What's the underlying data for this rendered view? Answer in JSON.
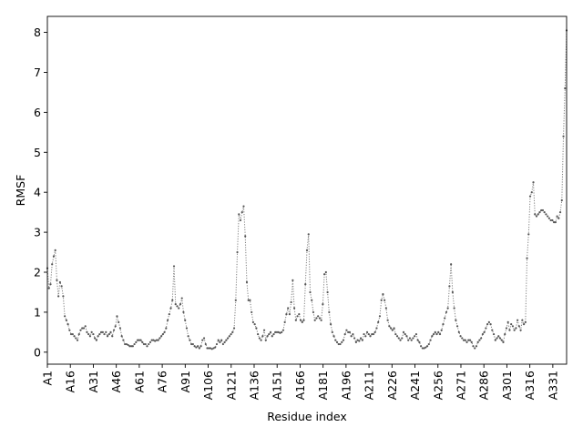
{
  "chart_data": {
    "type": "line",
    "xlabel": "Residue index",
    "ylabel": "RMSF",
    "ylim": [
      -0.3,
      8.4
    ],
    "yticks": [
      0,
      1,
      2,
      3,
      4,
      5,
      6,
      7,
      8
    ],
    "xticks": [
      "A1",
      "A16",
      "A31",
      "A46",
      "A61",
      "A76",
      "A91",
      "A106",
      "A121",
      "A136",
      "A151",
      "A166",
      "A181",
      "A196",
      "A211",
      "A226",
      "A241",
      "A256",
      "A271",
      "A286",
      "A301",
      "A316",
      "A331"
    ],
    "x_first": 1,
    "x_last": 340,
    "grid": false,
    "series": [
      {
        "color": "#808080",
        "line_style": "dotted",
        "marker": "point",
        "values": [
          2.1,
          1.6,
          1.7,
          2.2,
          2.4,
          2.55,
          1.8,
          1.4,
          1.75,
          1.65,
          1.4,
          0.9,
          0.8,
          0.7,
          0.55,
          0.45,
          0.45,
          0.4,
          0.35,
          0.3,
          0.45,
          0.55,
          0.6,
          0.6,
          0.65,
          0.5,
          0.45,
          0.4,
          0.5,
          0.45,
          0.35,
          0.3,
          0.4,
          0.45,
          0.5,
          0.5,
          0.45,
          0.5,
          0.4,
          0.45,
          0.5,
          0.4,
          0.55,
          0.65,
          0.9,
          0.75,
          0.6,
          0.4,
          0.3,
          0.2,
          0.2,
          0.18,
          0.15,
          0.15,
          0.15,
          0.2,
          0.25,
          0.3,
          0.3,
          0.3,
          0.25,
          0.2,
          0.2,
          0.15,
          0.2,
          0.25,
          0.3,
          0.3,
          0.28,
          0.3,
          0.3,
          0.35,
          0.4,
          0.45,
          0.5,
          0.6,
          0.8,
          0.95,
          1.1,
          1.3,
          2.15,
          1.2,
          1.15,
          1.1,
          1.2,
          1.35,
          1.0,
          0.8,
          0.6,
          0.4,
          0.3,
          0.2,
          0.2,
          0.15,
          0.12,
          0.15,
          0.1,
          0.15,
          0.3,
          0.35,
          0.2,
          0.1,
          0.1,
          0.1,
          0.08,
          0.1,
          0.12,
          0.2,
          0.3,
          0.25,
          0.3,
          0.2,
          0.25,
          0.3,
          0.35,
          0.4,
          0.45,
          0.5,
          0.6,
          1.3,
          2.5,
          3.45,
          3.3,
          3.5,
          3.65,
          2.9,
          1.75,
          1.3,
          1.3,
          1.0,
          0.75,
          0.7,
          0.6,
          0.45,
          0.35,
          0.3,
          0.4,
          0.55,
          0.3,
          0.4,
          0.45,
          0.5,
          0.4,
          0.45,
          0.5,
          0.5,
          0.5,
          0.48,
          0.5,
          0.55,
          0.75,
          0.95,
          1.1,
          0.95,
          1.25,
          1.8,
          1.1,
          0.8,
          0.9,
          0.95,
          0.8,
          0.75,
          0.8,
          1.7,
          2.55,
          2.95,
          1.5,
          1.3,
          1.0,
          0.8,
          0.85,
          0.9,
          0.85,
          0.8,
          1.2,
          1.95,
          2.0,
          1.5,
          1.0,
          0.7,
          0.5,
          0.4,
          0.3,
          0.25,
          0.2,
          0.2,
          0.25,
          0.3,
          0.45,
          0.55,
          0.5,
          0.5,
          0.4,
          0.45,
          0.35,
          0.25,
          0.3,
          0.28,
          0.35,
          0.3,
          0.45,
          0.4,
          0.5,
          0.45,
          0.4,
          0.45,
          0.45,
          0.5,
          0.6,
          0.75,
          0.9,
          1.3,
          1.45,
          1.3,
          1.1,
          0.8,
          0.65,
          0.6,
          0.55,
          0.6,
          0.45,
          0.4,
          0.35,
          0.3,
          0.35,
          0.5,
          0.45,
          0.4,
          0.3,
          0.35,
          0.3,
          0.35,
          0.4,
          0.45,
          0.3,
          0.25,
          0.15,
          0.1,
          0.1,
          0.12,
          0.15,
          0.2,
          0.3,
          0.4,
          0.45,
          0.5,
          0.45,
          0.5,
          0.45,
          0.55,
          0.7,
          0.85,
          1.0,
          1.1,
          1.65,
          2.2,
          1.5,
          1.1,
          0.8,
          0.65,
          0.5,
          0.4,
          0.35,
          0.3,
          0.3,
          0.25,
          0.3,
          0.3,
          0.25,
          0.15,
          0.1,
          0.15,
          0.25,
          0.3,
          0.35,
          0.45,
          0.5,
          0.6,
          0.7,
          0.75,
          0.7,
          0.55,
          0.45,
          0.3,
          0.35,
          0.4,
          0.35,
          0.3,
          0.25,
          0.45,
          0.6,
          0.75,
          0.55,
          0.7,
          0.65,
          0.55,
          0.6,
          0.8,
          0.65,
          0.55,
          0.8,
          0.7,
          0.75,
          2.35,
          2.95,
          3.9,
          4.0,
          4.25,
          3.45,
          3.4,
          3.45,
          3.5,
          3.55,
          3.55,
          3.5,
          3.45,
          3.4,
          3.35,
          3.3,
          3.3,
          3.25,
          3.25,
          3.4,
          3.35,
          3.5,
          3.8,
          5.4,
          6.6,
          8.05
        ]
      }
    ]
  }
}
